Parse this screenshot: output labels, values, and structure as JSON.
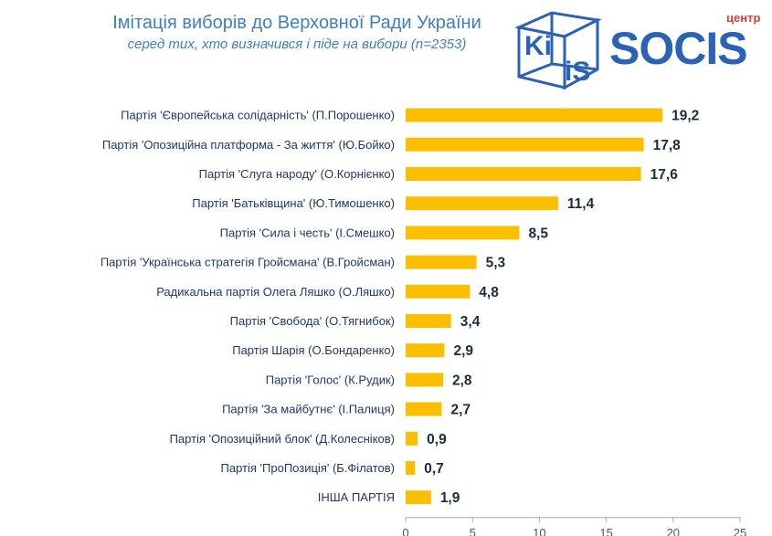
{
  "header": {
    "title": "Імітація виборів до Верховної Ради України",
    "subtitle": "серед тих, хто визначився і піде на вибори (n=2353)"
  },
  "logos": {
    "kiis": {
      "line1": "Ki",
      "line2": "iS"
    },
    "socis": {
      "top": "центр",
      "main": "SOCIS"
    }
  },
  "colors": {
    "bar": "#fbbf00",
    "title": "#3d7fc2",
    "kiis": "#2a62b6",
    "socis": "#2a62b6",
    "socis_small": "#e23b35",
    "axis": "#a6a6a6"
  },
  "chart_data": {
    "type": "bar",
    "orientation": "horizontal",
    "categories": [
      "Партія 'Європейська солідарність' (П.Порошенко)",
      "Партія 'Опозиційна платформа - За життя' (Ю.Бойко)",
      "Партія 'Слуга народу' (О.Корнієнко)",
      "Партія 'Батьківщина' (Ю.Тимошенко)",
      "Партія 'Сила і честь' (І.Смешко)",
      "Партія 'Українська стратегія Гройсмана' (В.Гройсман)",
      "Радикальна партія Олега Ляшко (О.Ляшко)",
      "Партія 'Свобода' (О.Тягнибок)",
      "Партія Шарія (О.Бондаренко)",
      "Партія 'Голос' (К.Рудик)",
      "Партія 'За майбутнє' (І.Палиця)",
      "Партія 'Опозиційний блок' (Д.Колесніков)",
      "Партія 'ПроПозиція' (Б.Філатов)",
      "ІНША ПАРТІЯ"
    ],
    "values": [
      19.2,
      17.8,
      17.6,
      11.4,
      8.5,
      5.3,
      4.8,
      3.4,
      2.9,
      2.8,
      2.7,
      0.9,
      0.7,
      1.9
    ],
    "value_labels": [
      "19,2",
      "17,8",
      "17,6",
      "11,4",
      "8,5",
      "5,3",
      "4,8",
      "3,4",
      "2,9",
      "2,8",
      "2,7",
      "0,9",
      "0,7",
      "1,9"
    ],
    "xlim": [
      0,
      25
    ],
    "xticks": [
      0,
      5,
      10,
      15,
      20,
      25
    ],
    "grid": false,
    "legend": "none"
  }
}
